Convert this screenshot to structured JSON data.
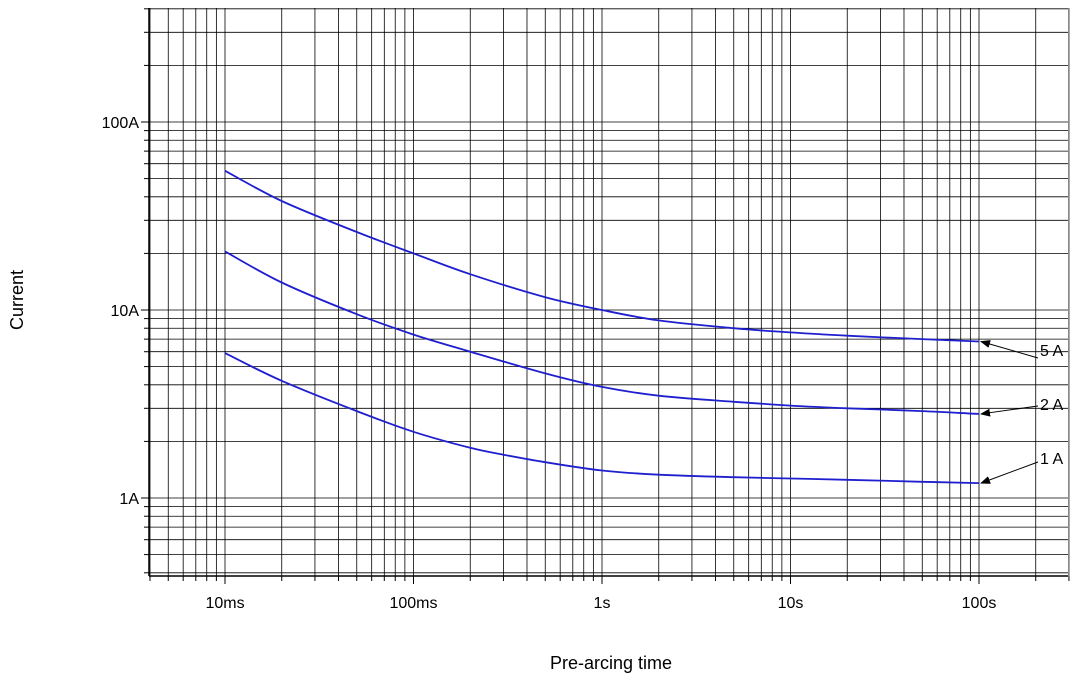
{
  "chart_data": {
    "type": "line",
    "title": "",
    "xlabel": "Pre-arcing time",
    "ylabel": "Current",
    "x_scale": "log",
    "y_scale": "log",
    "x_unit": "s",
    "y_unit": "A",
    "xlim": [
      0.004,
      300
    ],
    "ylim": [
      0.4,
      400
    ],
    "grid": true,
    "x_ticks": [
      {
        "value": 0.01,
        "label": "10ms"
      },
      {
        "value": 0.1,
        "label": "100ms"
      },
      {
        "value": 1,
        "label": "1s"
      },
      {
        "value": 10,
        "label": "10s"
      },
      {
        "value": 100,
        "label": "100s"
      }
    ],
    "y_ticks": [
      {
        "value": 1,
        "label": "1A"
      },
      {
        "value": 10,
        "label": "10A"
      },
      {
        "value": 100,
        "label": "100A"
      }
    ],
    "series": [
      {
        "name": "5 A",
        "color": "#1f1fcf",
        "x": [
          0.01,
          0.02,
          0.05,
          0.1,
          0.2,
          0.5,
          1,
          2,
          5,
          10,
          20,
          50,
          100
        ],
        "y": [
          55,
          38,
          26,
          20,
          15.5,
          11.7,
          10.0,
          8.8,
          8.0,
          7.6,
          7.3,
          7.0,
          6.8
        ]
      },
      {
        "name": "2 A",
        "color": "#1f1fcf",
        "x": [
          0.01,
          0.02,
          0.05,
          0.1,
          0.2,
          0.5,
          1,
          2,
          5,
          10,
          20,
          50,
          100
        ],
        "y": [
          20.5,
          14,
          9.5,
          7.4,
          6.0,
          4.6,
          3.9,
          3.5,
          3.25,
          3.1,
          3.0,
          2.9,
          2.8
        ]
      },
      {
        "name": "1 A",
        "color": "#1f1fcf",
        "x": [
          0.01,
          0.02,
          0.05,
          0.1,
          0.2,
          0.3,
          0.5,
          1,
          2,
          5,
          10,
          20,
          50,
          100
        ],
        "y": [
          5.9,
          4.2,
          2.9,
          2.25,
          1.85,
          1.7,
          1.55,
          1.4,
          1.33,
          1.29,
          1.27,
          1.25,
          1.22,
          1.2
        ]
      }
    ]
  }
}
